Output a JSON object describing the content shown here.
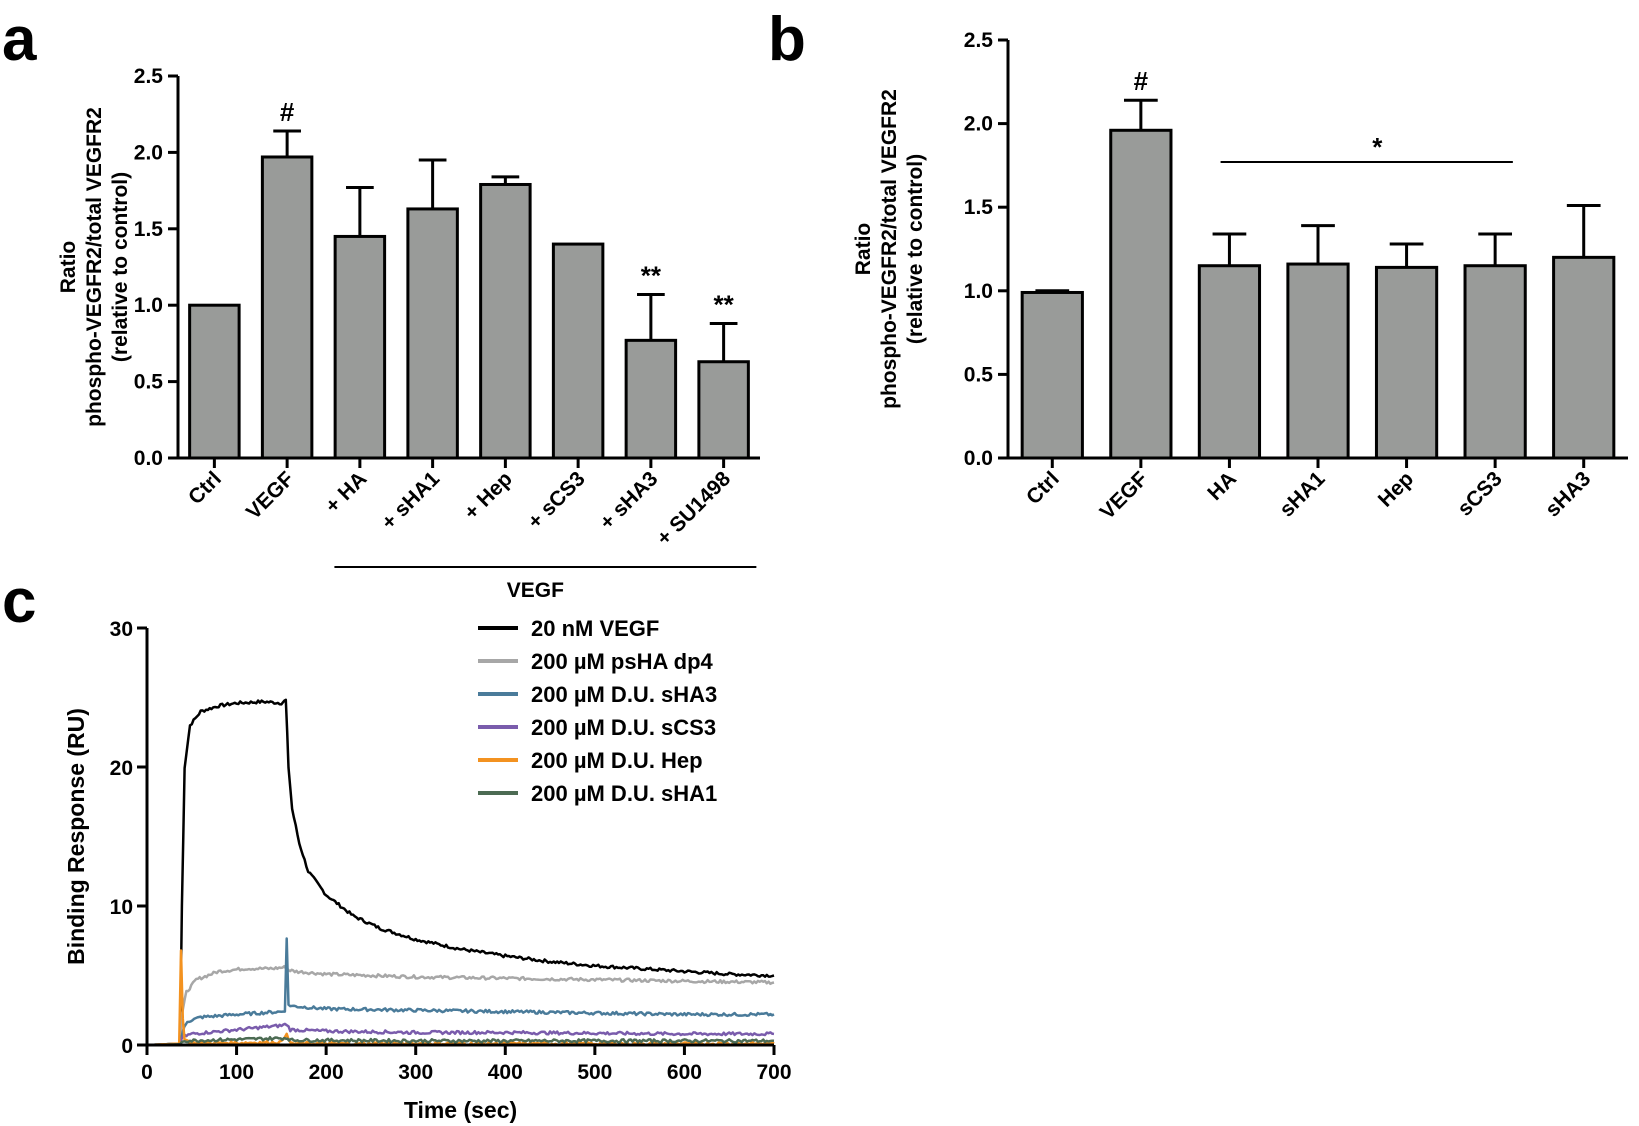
{
  "panels": {
    "a": "a",
    "b": "b",
    "c": "c"
  },
  "chart_data": [
    {
      "id": "a",
      "type": "bar",
      "ylabel_lines": [
        "Ratio",
        "phospho-VEGFR2/total VEGFR2",
        "(relative to control)"
      ],
      "ylim": [
        0,
        2.5
      ],
      "yticks": [
        "0.0",
        "0.5",
        "1.0",
        "1.5",
        "2.0",
        "2.5"
      ],
      "categories": [
        "Ctrl",
        "VEGF",
        "+ HA",
        "+ sHA1",
        "+ Hep",
        "+ sCS3",
        "+ sHA3",
        "+ SU1498"
      ],
      "values": [
        1.0,
        1.97,
        1.45,
        1.63,
        1.79,
        1.4,
        0.77,
        0.63
      ],
      "errors": [
        0,
        0.17,
        0.32,
        0.32,
        0.05,
        0.0,
        0.3,
        0.25
      ],
      "annotations": [
        "",
        "#",
        "",
        "",
        "",
        "",
        "**",
        "**"
      ],
      "group_label": "VEGF",
      "bar_color": "#999b99"
    },
    {
      "id": "b",
      "type": "bar",
      "ylabel_lines": [
        "Ratio",
        "phospho-VEGFR2/total VEGFR2",
        "(relative to control)"
      ],
      "ylim": [
        0,
        2.5
      ],
      "yticks": [
        "0.0",
        "0.5",
        "1.0",
        "1.5",
        "2.0",
        "2.5"
      ],
      "categories": [
        "Ctrl",
        "VEGF",
        "HA",
        "sHA1",
        "Hep",
        "sCS3",
        "sHA3"
      ],
      "values": [
        0.99,
        1.96,
        1.15,
        1.16,
        1.14,
        1.15,
        1.2
      ],
      "errors": [
        0.01,
        0.18,
        0.19,
        0.23,
        0.14,
        0.19,
        0.31
      ],
      "annotations": [
        "",
        "#",
        "",
        "",
        "",
        "",
        ""
      ],
      "significance": "*",
      "bar_color": "#999b99"
    },
    {
      "id": "c",
      "type": "line",
      "xlabel": "Time (sec)",
      "ylabel": "Binding Response (RU)",
      "xlim": [
        0,
        700
      ],
      "ylim": [
        0,
        30
      ],
      "xticks": [
        "0",
        "100",
        "200",
        "300",
        "400",
        "500",
        "600",
        "700"
      ],
      "yticks": [
        "0",
        "10",
        "20",
        "30"
      ],
      "series": [
        {
          "name": "20 nM VEGF",
          "color": "#000000",
          "x": [
            0,
            37,
            39,
            42,
            48,
            60,
            80,
            100,
            130,
            150,
            155,
            158,
            162,
            170,
            180,
            200,
            230,
            260,
            300,
            350,
            400,
            450,
            500,
            550,
            600,
            650,
            700
          ],
          "y": [
            0,
            0.1,
            10,
            20,
            23,
            24,
            24.4,
            24.6,
            24.7,
            24.6,
            24.8,
            20,
            17,
            14.5,
            12.5,
            10.8,
            9.3,
            8.4,
            7.6,
            6.9,
            6.4,
            6.0,
            5.7,
            5.5,
            5.3,
            5.1,
            5.0
          ]
        },
        {
          "name": "200 µM psHA dp4",
          "color": "#a7a7a7",
          "x": [
            0,
            37,
            39,
            44,
            55,
            80,
            110,
            140,
            155,
            158,
            165,
            200,
            300,
            400,
            500,
            600,
            700
          ],
          "y": [
            0,
            0.1,
            2.2,
            3.8,
            4.7,
            5.3,
            5.5,
            5.5,
            5.6,
            5.4,
            5.3,
            5.1,
            4.9,
            4.8,
            4.7,
            4.6,
            4.5
          ]
        },
        {
          "name": "200 µM D.U. sHA3",
          "color": "#4a7b9a",
          "x": [
            0,
            37,
            40,
            45,
            60,
            100,
            150,
            154,
            156,
            158,
            162,
            200,
            300,
            400,
            500,
            600,
            700
          ],
          "y": [
            0,
            0.1,
            1.0,
            1.7,
            2.0,
            2.2,
            2.4,
            2.5,
            7.6,
            2.9,
            2.8,
            2.6,
            2.5,
            2.4,
            2.3,
            2.2,
            2.2
          ]
        },
        {
          "name": "200 µM D.U. sCS3",
          "color": "#7a5cac",
          "x": [
            0,
            37,
            40,
            50,
            100,
            150,
            156,
            160,
            200,
            300,
            400,
            500,
            600,
            700
          ],
          "y": [
            0,
            0.05,
            0.6,
            0.8,
            1.1,
            1.4,
            1.5,
            1.1,
            1.0,
            0.9,
            0.9,
            0.85,
            0.8,
            0.8
          ]
        },
        {
          "name": "200 µM D.U. Hep",
          "color": "#f39220",
          "x": [
            0,
            36,
            38,
            40,
            42,
            50,
            100,
            150,
            156,
            158,
            162,
            200,
            400,
            700
          ],
          "y": [
            0,
            0.1,
            6.8,
            2.0,
            0.4,
            0.15,
            0.15,
            0.2,
            0.9,
            0.3,
            0.1,
            0.1,
            0.1,
            0.1
          ]
        },
        {
          "name": "200 µM D.U. sHA1",
          "color": "#4c6b53",
          "x": [
            0,
            37,
            40,
            100,
            157,
            160,
            300,
            500,
            700
          ],
          "y": [
            0,
            0.05,
            0.3,
            0.4,
            0.5,
            0.35,
            0.3,
            0.3,
            0.3
          ]
        }
      ]
    }
  ]
}
